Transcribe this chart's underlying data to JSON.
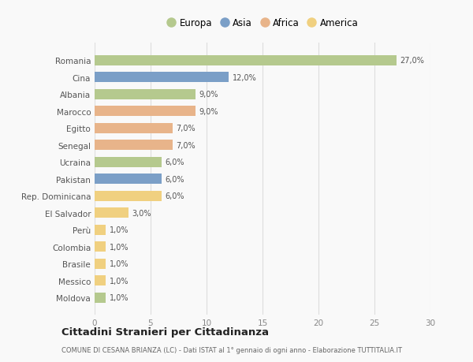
{
  "countries": [
    "Moldova",
    "Messico",
    "Brasile",
    "Colombia",
    "Perù",
    "El Salvador",
    "Rep. Dominicana",
    "Pakistan",
    "Ucraina",
    "Senegal",
    "Egitto",
    "Marocco",
    "Albania",
    "Cina",
    "Romania"
  ],
  "values": [
    1.0,
    1.0,
    1.0,
    1.0,
    1.0,
    3.0,
    6.0,
    6.0,
    6.0,
    7.0,
    7.0,
    9.0,
    9.0,
    12.0,
    27.0
  ],
  "continents": [
    "Europa",
    "America",
    "America",
    "America",
    "America",
    "America",
    "America",
    "Asia",
    "Europa",
    "Africa",
    "Africa",
    "Africa",
    "Europa",
    "Asia",
    "Europa"
  ],
  "labels": [
    "1,0%",
    "1,0%",
    "1,0%",
    "1,0%",
    "1,0%",
    "3,0%",
    "6,0%",
    "6,0%",
    "6,0%",
    "7,0%",
    "7,0%",
    "9,0%",
    "9,0%",
    "12,0%",
    "27,0%"
  ],
  "continent_colors": {
    "Europa": "#b5c98e",
    "Asia": "#7b9fc7",
    "Africa": "#e8b48a",
    "America": "#f0d080"
  },
  "legend_order": [
    "Europa",
    "Asia",
    "Africa",
    "America"
  ],
  "title": "Cittadini Stranieri per Cittadinanza",
  "subtitle": "COMUNE DI CESANA BRIANZA (LC) - Dati ISTAT al 1° gennaio di ogni anno - Elaborazione TUTTITALIA.IT",
  "xlim": [
    0,
    30
  ],
  "xticks": [
    0,
    5,
    10,
    15,
    20,
    25,
    30
  ],
  "background_color": "#f9f9f9",
  "grid_color": "#dddddd",
  "bar_height": 0.6
}
